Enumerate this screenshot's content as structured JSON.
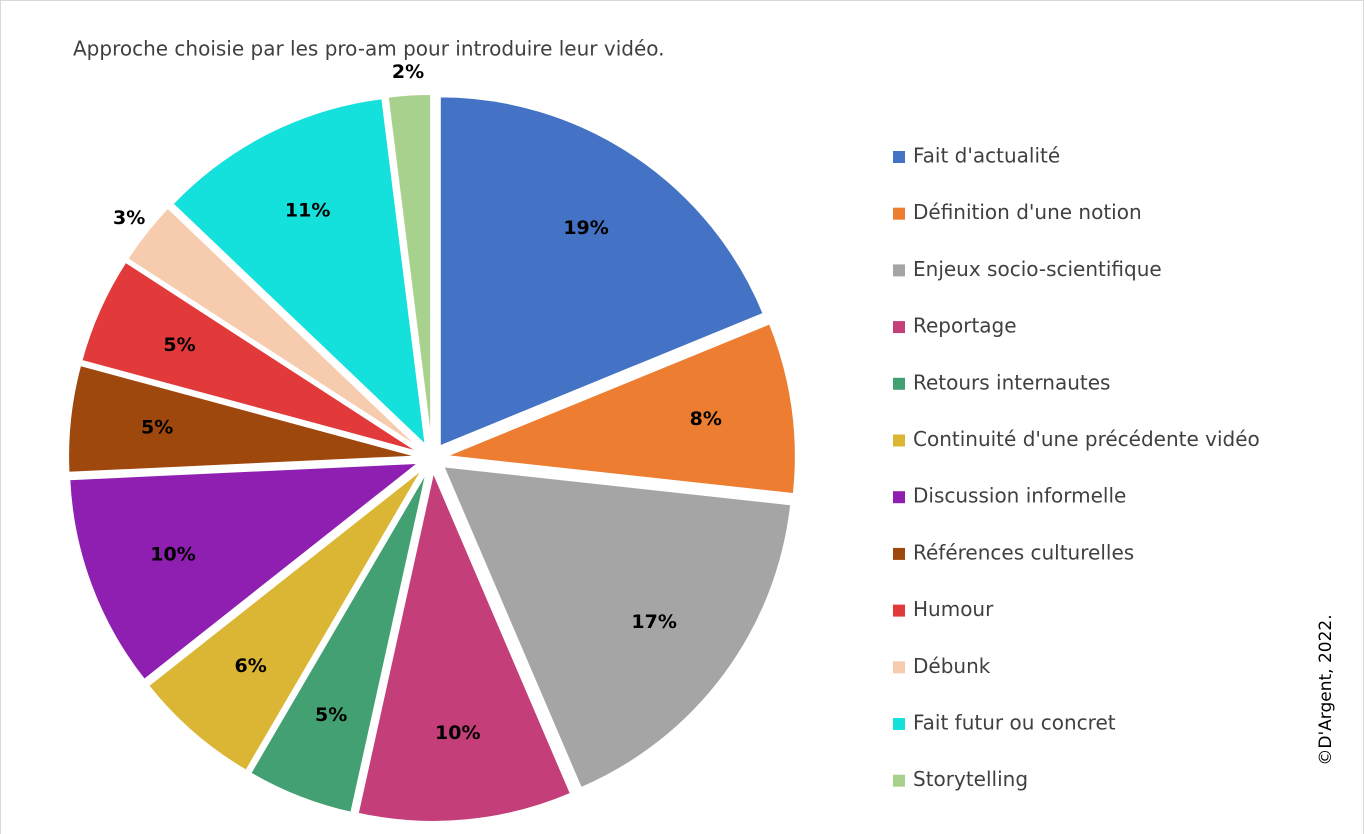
{
  "chart_data": {
    "type": "pie",
    "title": "Approche choisie par les pro-am pour introduire leur vidéo.",
    "copyright": "©D'Argent, 2022.",
    "categories": [
      "Fait d'actualité",
      "Définition d'une notion",
      "Enjeux socio-scientifique",
      "Reportage",
      "Retours internautes",
      "Continuité d'une précédente vidéo",
      "Discussion informelle",
      "Références culturelles",
      "Humour",
      "Débunk",
      "Fait futur ou concret",
      "Storytelling"
    ],
    "values": [
      19,
      8,
      17,
      10,
      5,
      6,
      10,
      5,
      5,
      3,
      11,
      2
    ],
    "value_labels": [
      "19%",
      "8%",
      "17%",
      "10%",
      "5%",
      "6%",
      "10%",
      "5%",
      "5%",
      "3%",
      "11%",
      "2%"
    ],
    "colors": [
      "#4472c4",
      "#ed7d31",
      "#a5a5a5",
      "#c43e7a",
      "#43a073",
      "#dbb634",
      "#8e1fb1",
      "#9e480e",
      "#e23a3a",
      "#f7cbad",
      "#14e0dc",
      "#a9d18e"
    ],
    "legend": "right"
  }
}
